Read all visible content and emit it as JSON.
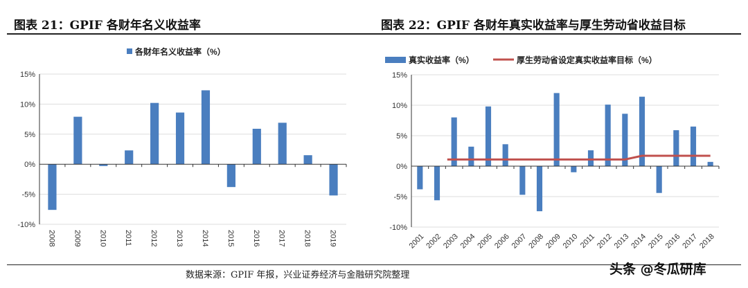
{
  "titles": {
    "left": "图表 21：GPIF 各财年名义收益率",
    "right": "图表 22：GPIF 各财年真实收益率与厚生劳动省收益目标"
  },
  "footer": "数据来源：GPIF 年报，兴业证券经济与金融研究院整理",
  "watermark": "头条 @冬瓜研库",
  "chart_data": [
    {
      "type": "bar",
      "title": "",
      "ylim": [
        -10,
        15
      ],
      "yticks": [
        "-10%",
        "-5%",
        "0%",
        "5%",
        "10%",
        "15%"
      ],
      "grid": true,
      "legend": "top",
      "bar_color": "#4a7ebf",
      "categories": [
        "2008",
        "2009",
        "2010",
        "2011",
        "2012",
        "2013",
        "2014",
        "2015",
        "2016",
        "2017",
        "2018",
        "2019"
      ],
      "series": [
        {
          "name": "各财年名义收益率（%）",
          "values": [
            -7.6,
            7.9,
            -0.3,
            2.3,
            10.2,
            8.6,
            12.3,
            -3.8,
            5.9,
            6.9,
            1.5,
            -5.2
          ]
        }
      ]
    },
    {
      "type": "bar",
      "title": "",
      "ylim": [
        -10,
        15
      ],
      "yticks": [
        "-10%",
        "-5%",
        "0%",
        "5%",
        "10%",
        "15%"
      ],
      "grid": true,
      "legend": "top",
      "bar_color": "#4a7ebf",
      "line_color": "#c0504d",
      "categories": [
        "2001",
        "2002",
        "2003",
        "2004",
        "2005",
        "2006",
        "2007",
        "2008",
        "2009",
        "2010",
        "2011",
        "2012",
        "2013",
        "2014",
        "2015",
        "2016",
        "2017",
        "2018"
      ],
      "series": [
        {
          "name": "真实收益率（%）",
          "type": "bar",
          "values": [
            -3.8,
            -5.6,
            8.0,
            3.2,
            9.8,
            3.6,
            -4.7,
            -7.4,
            12.0,
            -1.0,
            2.6,
            10.1,
            8.6,
            11.4,
            -4.4,
            5.9,
            6.5,
            0.7
          ]
        },
        {
          "name": "厚生劳动省设定真实收益率目标（%）",
          "type": "line",
          "values": [
            null,
            null,
            1.1,
            1.1,
            1.1,
            1.1,
            1.1,
            1.1,
            1.1,
            1.1,
            1.1,
            1.1,
            1.1,
            1.7,
            1.7,
            1.7,
            1.7,
            1.7
          ]
        }
      ]
    }
  ]
}
